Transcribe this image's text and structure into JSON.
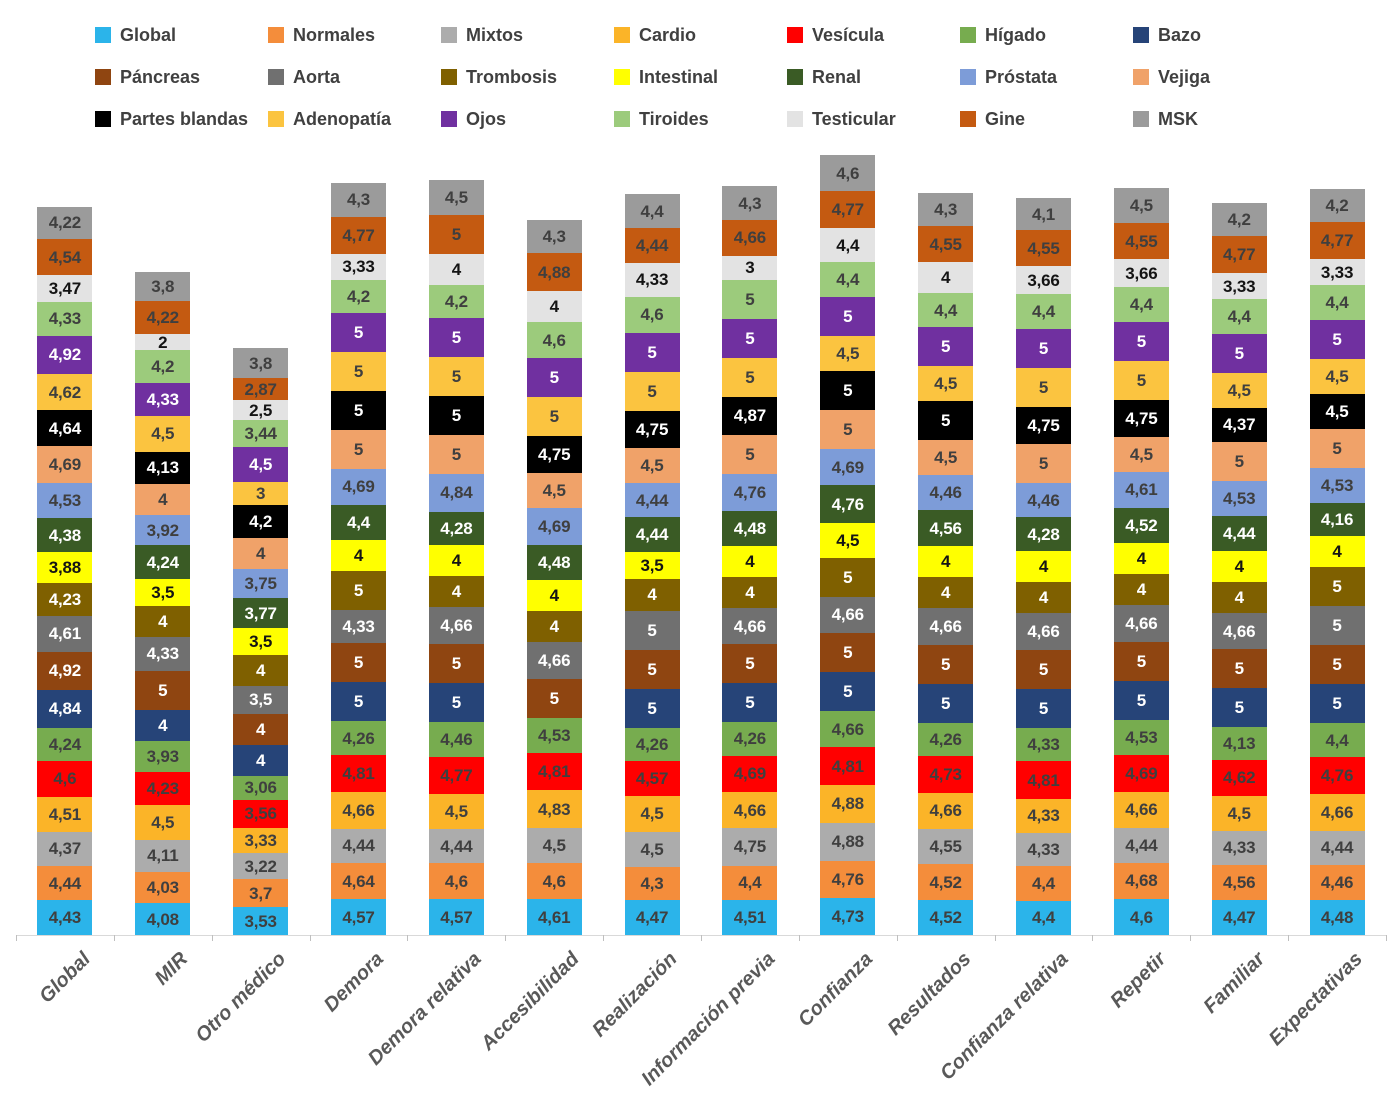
{
  "chart_data": {
    "type": "bar",
    "stacked": true,
    "legend_position": "top",
    "grid": false,
    "value_decimal_separator": ",",
    "axis_label_color": "#595959",
    "legend_text_color": "#404040",
    "categories": [
      "Global",
      "MIR",
      "Otro médico",
      "Demora",
      "Demora relativa",
      "Accesibilidad",
      "Realización",
      "Información previa",
      "Confianza",
      "Resultados",
      "Confianza relativa",
      "Repetir",
      "Familiar",
      "Expectativas"
    ],
    "series": [
      {
        "name": "Global",
        "color": "#2BB4EA",
        "label_color": "#3F3F3F",
        "values": [
          4.43,
          4.08,
          3.53,
          4.57,
          4.57,
          4.61,
          4.47,
          4.51,
          4.73,
          4.52,
          4.4,
          4.6,
          4.47,
          4.48
        ]
      },
      {
        "name": "Normales",
        "color": "#F48D3B",
        "label_color": "#3F3F3F",
        "values": [
          4.44,
          4.03,
          3.7,
          4.64,
          4.6,
          4.6,
          4.3,
          4.4,
          4.76,
          4.52,
          4.4,
          4.68,
          4.56,
          4.46
        ]
      },
      {
        "name": "Mixtos",
        "color": "#ACACAC",
        "label_color": "#3F3F3F",
        "values": [
          4.37,
          4.11,
          3.22,
          4.44,
          4.44,
          4.5,
          4.5,
          4.75,
          4.88,
          4.55,
          4.33,
          4.44,
          4.33,
          4.44
        ]
      },
      {
        "name": "Cardio",
        "color": "#FBB428",
        "label_color": "#3F3F3F",
        "values": [
          4.51,
          4.5,
          3.33,
          4.66,
          4.5,
          4.83,
          4.5,
          4.66,
          4.88,
          4.66,
          4.33,
          4.66,
          4.5,
          4.66
        ]
      },
      {
        "name": "Vesícula",
        "color": "#FF0000",
        "label_color": "#3F3F3F",
        "values": [
          4.6,
          4.23,
          3.56,
          4.81,
          4.77,
          4.81,
          4.57,
          4.69,
          4.81,
          4.73,
          4.81,
          4.69,
          4.62,
          4.76
        ]
      },
      {
        "name": "Hígado",
        "color": "#77AC4F",
        "label_color": "#3F3F3F",
        "values": [
          4.24,
          3.93,
          3.06,
          4.26,
          4.46,
          4.53,
          4.26,
          4.26,
          4.66,
          4.26,
          4.33,
          4.53,
          4.13,
          4.4
        ]
      },
      {
        "name": "Bazo",
        "color": "#264478",
        "label_color": "#FFFFFF",
        "values": [
          4.84,
          4,
          4,
          5,
          5,
          null,
          5,
          5,
          5,
          5,
          5,
          5,
          5,
          5
        ]
      },
      {
        "name": "Páncreas",
        "color": "#8F4511",
        "label_color": "#FFFFFF",
        "values": [
          4.92,
          5,
          4,
          5,
          5,
          5,
          5,
          5,
          5,
          5,
          5,
          5,
          5,
          5
        ]
      },
      {
        "name": "Aorta",
        "color": "#707070",
        "label_color": "#FFFFFF",
        "values": [
          4.61,
          4.33,
          3.5,
          4.33,
          4.66,
          4.66,
          5,
          4.66,
          4.66,
          4.66,
          4.66,
          4.66,
          4.66,
          5
        ]
      },
      {
        "name": "Trombosis",
        "color": "#7F6000",
        "label_color": "#FFFFFF",
        "values": [
          4.23,
          4,
          4,
          5,
          4,
          4,
          4,
          4,
          5,
          4,
          4,
          4,
          4,
          5
        ]
      },
      {
        "name": "Intestinal",
        "color": "#FFFF00",
        "label_color": "#141414",
        "values": [
          3.88,
          3.5,
          3.5,
          4,
          4,
          4,
          3.5,
          4,
          4.5,
          4,
          4,
          4,
          4,
          4
        ]
      },
      {
        "name": "Renal",
        "color": "#3A5B25",
        "label_color": "#FFFFFF",
        "values": [
          4.38,
          4.24,
          3.77,
          4.4,
          4.28,
          4.48,
          4.44,
          4.48,
          4.76,
          4.56,
          4.28,
          4.52,
          4.44,
          4.16
        ]
      },
      {
        "name": "Próstata",
        "color": "#7D9CD8",
        "label_color": "#3F3F3F",
        "values": [
          4.53,
          3.92,
          3.75,
          4.69,
          4.84,
          4.69,
          4.44,
          4.76,
          4.69,
          4.46,
          4.46,
          4.61,
          4.53,
          4.53
        ]
      },
      {
        "name": "Vejiga",
        "color": "#F0A269",
        "label_color": "#3F3F3F",
        "values": [
          4.69,
          4,
          4,
          5,
          5,
          4.5,
          4.5,
          5,
          5,
          4.5,
          5,
          4.5,
          5,
          5
        ]
      },
      {
        "name": "Partes blandas",
        "color": "#000000",
        "label_color": "#FFFFFF",
        "values": [
          4.64,
          4.13,
          4.2,
          5,
          5,
          4.75,
          4.75,
          4.87,
          5,
          5,
          4.75,
          4.75,
          4.37,
          4.5
        ]
      },
      {
        "name": "Adenopatía",
        "color": "#FBC440",
        "label_color": "#3F3F3F",
        "values": [
          4.62,
          4.5,
          3,
          5,
          5,
          5,
          5,
          5,
          4.5,
          4.5,
          5,
          5,
          4.5,
          4.5
        ]
      },
      {
        "name": "Ojos",
        "color": "#7030A0",
        "label_color": "#FFFFFF",
        "values": [
          4.92,
          4.33,
          4.5,
          5,
          5,
          5,
          5,
          5,
          5,
          5,
          5,
          5,
          5,
          5
        ]
      },
      {
        "name": "Tiroides",
        "color": "#9CCB7C",
        "label_color": "#3F3F3F",
        "values": [
          4.33,
          4.2,
          3.44,
          4.2,
          4.2,
          4.6,
          4.6,
          5,
          4.4,
          4.4,
          4.4,
          4.4,
          4.4,
          4.4
        ]
      },
      {
        "name": "Testicular",
        "color": "#E3E3E3",
        "label_color": "#141414",
        "values": [
          3.47,
          2,
          2.5,
          3.33,
          4,
          4,
          4.33,
          3,
          4.4,
          4,
          3.66,
          3.66,
          3.33,
          3.33
        ]
      },
      {
        "name": "Gine",
        "color": "#C45A11",
        "label_color": "#3F3F3F",
        "values": [
          4.54,
          4.22,
          2.87,
          4.77,
          5,
          4.88,
          4.44,
          4.66,
          4.77,
          4.55,
          4.55,
          4.55,
          4.77,
          4.77
        ]
      },
      {
        "name": "MSK",
        "color": "#9B9B9B",
        "label_color": "#3F3F3F",
        "values": [
          4.22,
          3.8,
          3.8,
          4.3,
          4.5,
          4.3,
          4.4,
          4.3,
          4.6,
          4.3,
          4.1,
          4.5,
          4.2,
          4.2
        ]
      }
    ]
  }
}
